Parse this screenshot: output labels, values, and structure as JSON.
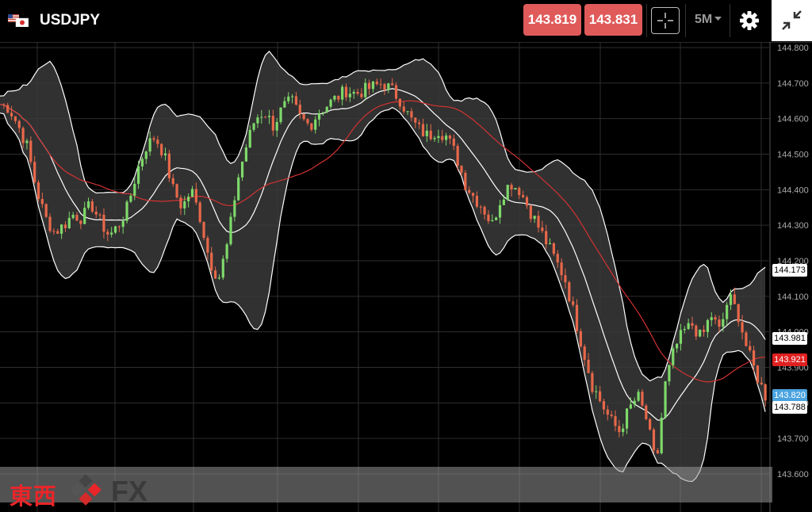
{
  "header": {
    "symbol": "USDJPY",
    "bid_price": "143.819",
    "ask_price": "143.831",
    "timeframe": "5M",
    "flags": [
      "us-flag-icon",
      "jp-flag-icon"
    ],
    "icons": [
      "crosshair-icon",
      "chevron-down-icon",
      "gear-icon",
      "collapse-icon"
    ]
  },
  "colors": {
    "price_button": "#e05a5a",
    "bullish_candle": "#7ed96a",
    "bearish_candle": "#e8684a",
    "band_fill": "#3a3a3a",
    "band_line": "#ffffff",
    "ma_line": "#d33232",
    "current_price_badge": "#e02020",
    "bid_badge": "#4aa3df",
    "logo_red": "#e8262a"
  },
  "chart_data": {
    "type": "candlestick",
    "y_ticks": [
      "144.800",
      "144.700",
      "144.600",
      "144.500",
      "144.400",
      "144.300",
      "144.200",
      "144.100",
      "144.000",
      "143.900",
      "143.800",
      "143.700",
      "143.600"
    ],
    "ylim": [
      143.57,
      144.81
    ],
    "badges": [
      {
        "label": "144.173",
        "value": 144.173,
        "style": "white"
      },
      {
        "label": "143.981",
        "value": 143.981,
        "style": "white"
      },
      {
        "label": "143.921",
        "value": 143.921,
        "style": "red"
      },
      {
        "label": "143.820",
        "value": 143.82,
        "style": "blue"
      },
      {
        "label": "143.788",
        "value": 143.788,
        "style": "white"
      }
    ],
    "indicators": [
      "Bollinger Bands",
      "Moving Average"
    ],
    "close_path": [
      144.64,
      144.63,
      144.58,
      144.52,
      144.4,
      144.32,
      144.28,
      144.3,
      144.33,
      144.32,
      144.36,
      144.31,
      144.27,
      144.3,
      144.35,
      144.45,
      144.52,
      144.55,
      144.5,
      144.4,
      144.35,
      144.4,
      144.32,
      144.2,
      144.15,
      144.25,
      144.42,
      144.52,
      144.6,
      144.62,
      144.58,
      144.63,
      144.65,
      144.6,
      144.58,
      144.62,
      144.64,
      144.66,
      144.68,
      144.67,
      144.68,
      144.69,
      144.7,
      144.68,
      144.65,
      144.6,
      144.57,
      144.55,
      144.57,
      144.55,
      144.5,
      144.42,
      144.38,
      144.35,
      144.3,
      144.38,
      144.42,
      144.4,
      144.35,
      144.3,
      144.25,
      144.2,
      144.15,
      144.05,
      143.95,
      143.85,
      143.8,
      143.75,
      143.72,
      143.78,
      143.82,
      143.75,
      143.62,
      143.85,
      143.95,
      144.0,
      144.02,
      143.98,
      144.05,
      144.0,
      144.1,
      144.05,
      143.95,
      143.88,
      143.82
    ]
  },
  "logo": {
    "text": "東西",
    "suffix": "FX"
  }
}
